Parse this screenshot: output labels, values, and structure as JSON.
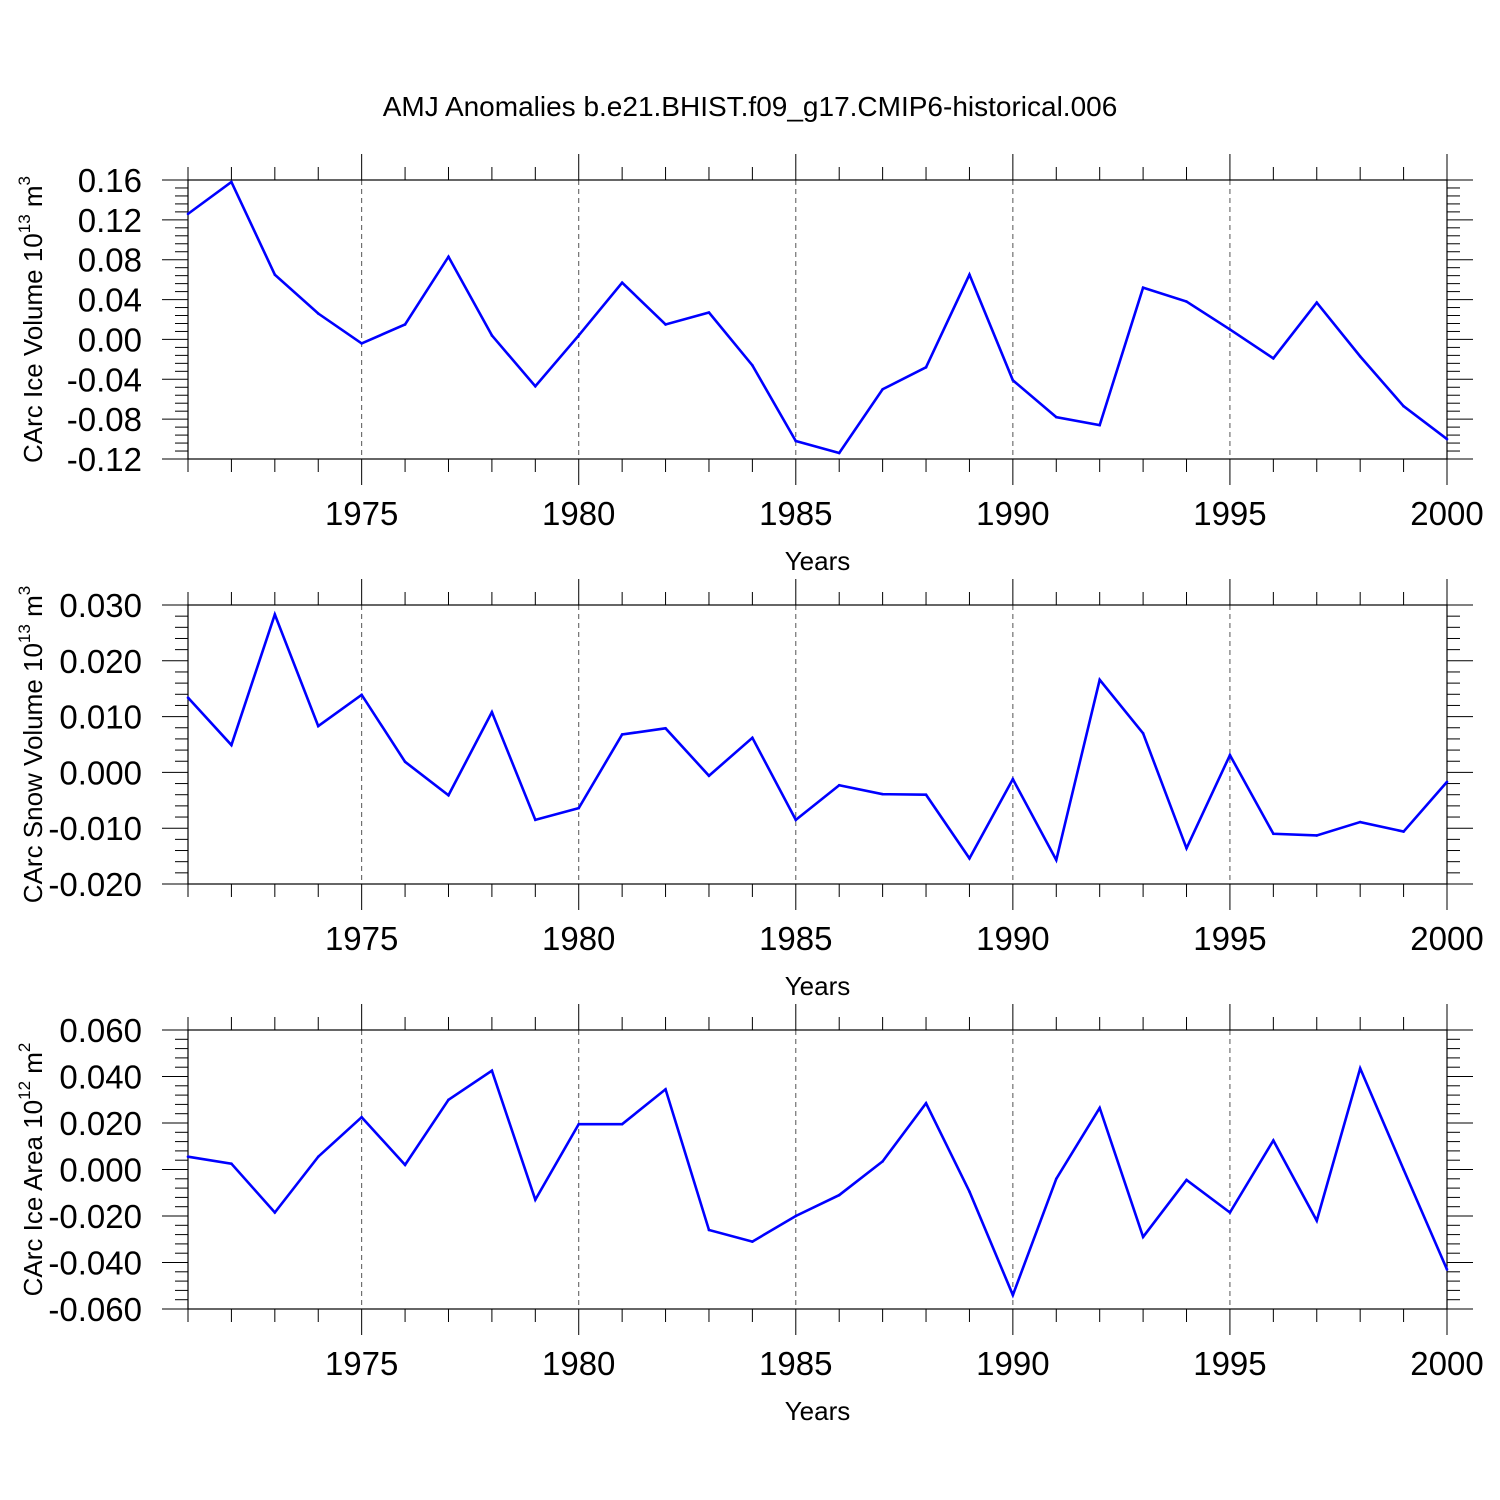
{
  "title": "AMJ Anomalies b.e21.BHIST.f09_g17.CMIP6-historical.006",
  "line_color": "#0000ff",
  "chart_data": [
    {
      "type": "line",
      "title": "AMJ Anomalies b.e21.BHIST.f09_g17.CMIP6-historical.006",
      "xlabel": "Years",
      "ylabel": {
        "text": "CArc Ice Volume 10",
        "exponent": "13",
        "unit": " m",
        "unit_exponent": "3"
      },
      "xlim": [
        1971,
        2000
      ],
      "ylim": [
        -0.12,
        0.16
      ],
      "x_ticks": [
        1975,
        1980,
        1985,
        1990,
        1995,
        2000
      ],
      "y_ticks": [
        "0.16",
        "0.12",
        "0.08",
        "0.04",
        "0.00",
        "-0.04",
        "-0.08",
        "-0.12"
      ],
      "y_tick_values": [
        0.16,
        0.12,
        0.08,
        0.04,
        0.0,
        -0.04,
        -0.08,
        -0.12
      ],
      "grid": "vertical dashed at major x ticks",
      "x": [
        1971,
        1972,
        1973,
        1974,
        1975,
        1976,
        1977,
        1978,
        1979,
        1980,
        1981,
        1982,
        1983,
        1984,
        1985,
        1986,
        1987,
        1988,
        1989,
        1990,
        1991,
        1992,
        1993,
        1994,
        1995,
        1996,
        1997,
        1998,
        1999,
        2000
      ],
      "series": [
        {
          "values": [
            0.126,
            0.158,
            0.065,
            0.026,
            -0.004,
            0.015,
            0.083,
            0.004,
            -0.047,
            0.004,
            0.057,
            0.015,
            0.027,
            -0.026,
            -0.102,
            -0.114,
            -0.05,
            -0.028,
            0.065,
            -0.041,
            -0.078,
            -0.086,
            0.052,
            0.038,
            0.01,
            -0.019,
            0.037,
            -0.017,
            -0.067,
            -0.1
          ]
        }
      ]
    },
    {
      "type": "line",
      "xlabel": "Years",
      "ylabel": {
        "text": "CArc Snow Volume 10",
        "exponent": "13",
        "unit": " m",
        "unit_exponent": "3"
      },
      "xlim": [
        1971,
        2000
      ],
      "ylim": [
        -0.02,
        0.03
      ],
      "x_ticks": [
        1975,
        1980,
        1985,
        1990,
        1995,
        2000
      ],
      "y_ticks": [
        "0.030",
        "0.020",
        "0.010",
        "0.000",
        "-0.010",
        "-0.020"
      ],
      "y_tick_values": [
        0.03,
        0.02,
        0.01,
        0.0,
        -0.01,
        -0.02
      ],
      "grid": "vertical dashed at major x ticks",
      "x": [
        1971,
        1972,
        1973,
        1974,
        1975,
        1976,
        1977,
        1978,
        1979,
        1980,
        1981,
        1982,
        1983,
        1984,
        1985,
        1986,
        1987,
        1988,
        1989,
        1990,
        1991,
        1992,
        1993,
        1994,
        1995,
        1996,
        1997,
        1998,
        1999,
        2000
      ],
      "series": [
        {
          "values": [
            0.0134,
            0.0049,
            0.0283,
            0.0083,
            0.0139,
            0.0019,
            -0.0041,
            0.0108,
            -0.0085,
            -0.0064,
            0.0068,
            0.0079,
            -0.0006,
            0.0062,
            -0.0085,
            -0.0023,
            -0.0039,
            -0.004,
            -0.0154,
            -0.0012,
            -0.0157,
            0.0166,
            0.007,
            -0.0136,
            0.0031,
            -0.011,
            -0.0113,
            -0.0089,
            -0.0106,
            -0.0017
          ]
        }
      ]
    },
    {
      "type": "line",
      "xlabel": "Years",
      "ylabel": {
        "text": "CArc Ice Area 10",
        "exponent": "12",
        "unit": " m",
        "unit_exponent": "2"
      },
      "xlim": [
        1971,
        2000
      ],
      "ylim": [
        -0.06,
        0.06
      ],
      "x_ticks": [
        1975,
        1980,
        1985,
        1990,
        1995,
        2000
      ],
      "y_ticks": [
        "0.060",
        "0.040",
        "0.020",
        "0.000",
        "-0.020",
        "-0.040",
        "-0.060"
      ],
      "y_tick_values": [
        0.06,
        0.04,
        0.02,
        0.0,
        -0.02,
        -0.04,
        -0.06
      ],
      "grid": "vertical dashed at major x ticks",
      "x": [
        1971,
        1972,
        1973,
        1974,
        1975,
        1976,
        1977,
        1978,
        1979,
        1980,
        1981,
        1982,
        1983,
        1984,
        1985,
        1986,
        1987,
        1988,
        1989,
        1990,
        1991,
        1992,
        1993,
        1994,
        1995,
        1996,
        1997,
        1998,
        1999,
        2000
      ],
      "series": [
        {
          "values": [
            0.0055,
            0.0025,
            -0.0185,
            0.0055,
            0.0225,
            0.002,
            0.03,
            0.0425,
            -0.013,
            0.0195,
            0.0195,
            0.0345,
            -0.026,
            -0.031,
            -0.02,
            -0.011,
            0.0035,
            0.0285,
            -0.0095,
            -0.054,
            -0.004,
            0.0265,
            -0.029,
            -0.0045,
            -0.0185,
            0.0125,
            -0.022,
            0.0435,
            0.0,
            -0.043
          ]
        }
      ]
    }
  ]
}
